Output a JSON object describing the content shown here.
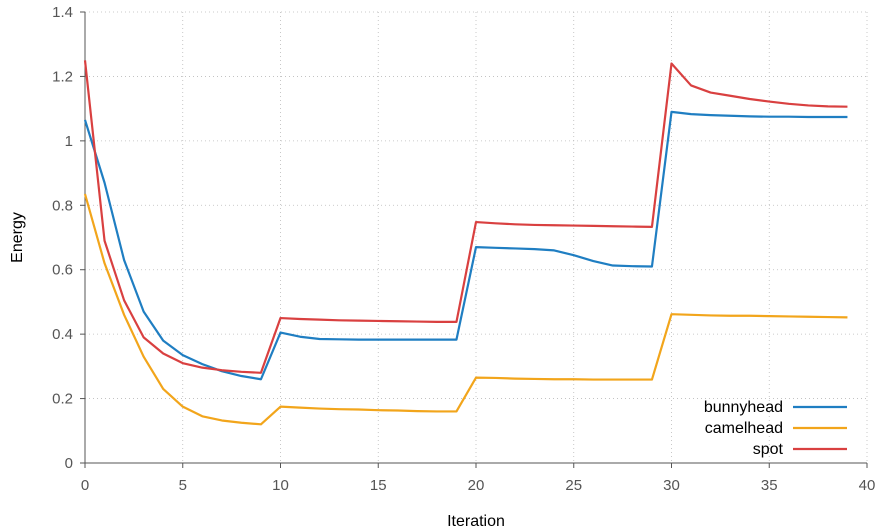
{
  "chart_data": {
    "type": "line",
    "xlabel": "Iteration",
    "ylabel": "Energy",
    "xlim": [
      0,
      40
    ],
    "ylim": [
      0,
      1.4
    ],
    "xticks": [
      0,
      5,
      10,
      15,
      20,
      25,
      30,
      35,
      40
    ],
    "yticks": [
      0,
      0.2,
      0.4,
      0.6,
      0.8,
      1,
      1.2,
      1.4
    ],
    "grid": true,
    "legend_position": "bottom-right",
    "series": [
      {
        "name": "bunnyhead",
        "color": "#1f7ec2",
        "x": [
          0,
          1,
          2,
          3,
          4,
          5,
          6,
          7,
          8,
          9,
          10,
          11,
          12,
          13,
          14,
          15,
          16,
          17,
          18,
          19,
          20,
          21,
          22,
          23,
          24,
          25,
          26,
          27,
          28,
          29,
          30,
          31,
          32,
          33,
          34,
          35,
          36,
          37,
          38,
          39
        ],
        "y": [
          1.065,
          0.87,
          0.63,
          0.47,
          0.38,
          0.335,
          0.307,
          0.285,
          0.27,
          0.26,
          0.405,
          0.392,
          0.385,
          0.384,
          0.383,
          0.383,
          0.383,
          0.383,
          0.383,
          0.383,
          0.67,
          0.668,
          0.666,
          0.664,
          0.66,
          0.645,
          0.627,
          0.613,
          0.611,
          0.61,
          1.09,
          1.083,
          1.08,
          1.078,
          1.076,
          1.075,
          1.075,
          1.074,
          1.074,
          1.074
        ]
      },
      {
        "name": "camelhead",
        "color": "#f2a51b",
        "x": [
          0,
          1,
          2,
          3,
          4,
          5,
          6,
          7,
          8,
          9,
          10,
          11,
          12,
          13,
          14,
          15,
          16,
          17,
          18,
          19,
          20,
          21,
          22,
          23,
          24,
          25,
          26,
          27,
          28,
          29,
          30,
          31,
          32,
          33,
          34,
          35,
          36,
          37,
          38,
          39
        ],
        "y": [
          0.835,
          0.62,
          0.46,
          0.33,
          0.23,
          0.175,
          0.145,
          0.132,
          0.125,
          0.12,
          0.175,
          0.172,
          0.169,
          0.167,
          0.166,
          0.164,
          0.163,
          0.161,
          0.16,
          0.16,
          0.265,
          0.264,
          0.262,
          0.261,
          0.26,
          0.26,
          0.259,
          0.259,
          0.259,
          0.259,
          0.462,
          0.46,
          0.458,
          0.457,
          0.457,
          0.456,
          0.455,
          0.454,
          0.453,
          0.452
        ]
      },
      {
        "name": "spot",
        "color": "#d94040",
        "x": [
          0,
          1,
          2,
          3,
          4,
          5,
          6,
          7,
          8,
          9,
          10,
          11,
          12,
          13,
          14,
          15,
          16,
          17,
          18,
          19,
          20,
          21,
          22,
          23,
          24,
          25,
          26,
          27,
          28,
          29,
          30,
          31,
          32,
          33,
          34,
          35,
          36,
          37,
          38,
          39
        ],
        "y": [
          1.25,
          0.69,
          0.505,
          0.39,
          0.34,
          0.31,
          0.296,
          0.288,
          0.283,
          0.28,
          0.45,
          0.447,
          0.445,
          0.443,
          0.442,
          0.441,
          0.44,
          0.439,
          0.438,
          0.438,
          0.748,
          0.744,
          0.741,
          0.739,
          0.738,
          0.737,
          0.736,
          0.735,
          0.734,
          0.733,
          1.24,
          1.172,
          1.15,
          1.14,
          1.13,
          1.122,
          1.115,
          1.11,
          1.107,
          1.106
        ]
      }
    ]
  }
}
